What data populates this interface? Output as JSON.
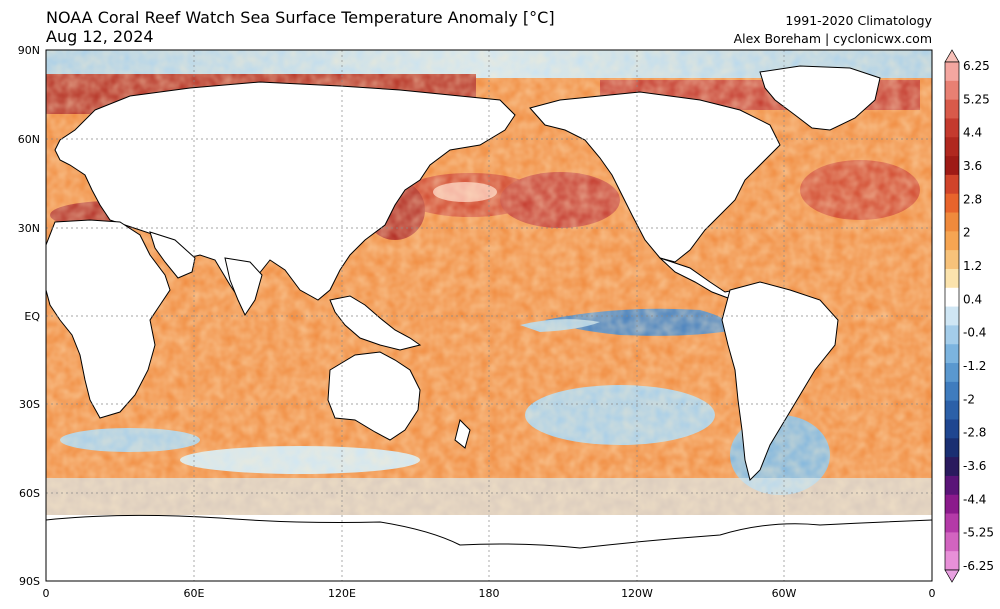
{
  "header": {
    "title": "NOAA Coral Reef Watch Sea Surface Temperature Anomaly [°C]",
    "date": "Aug 12, 2024",
    "climatology": "1991-2020 Climatology",
    "credit": "Alex Boreham | cyclonicwx.com"
  },
  "map": {
    "lat_labels": [
      "90N",
      "60N",
      "30N",
      "EQ",
      "30S",
      "60S",
      "90S"
    ],
    "lon_labels": [
      "0",
      "60E",
      "120E",
      "180",
      "120W",
      "60W",
      "0"
    ]
  },
  "colorbar": {
    "labels": [
      "6.25",
      "5.25",
      "4.4",
      "3.6",
      "2.8",
      "2",
      "1.2",
      "0.4",
      "-0.4",
      "-1.2",
      "-2",
      "-2.8",
      "-3.6",
      "-4.4",
      "-5.25",
      "-6.25"
    ],
    "colors": [
      "#f4a6a0",
      "#e88073",
      "#d85a4a",
      "#c43a2e",
      "#b0281f",
      "#9e1b16",
      "#d0442a",
      "#e8642c",
      "#f08a3c",
      "#f6a552",
      "#f7c27a",
      "#fbe3ad",
      "#ffffff",
      "#cfe6f4",
      "#a4cdea",
      "#7cb4df",
      "#5a98cf",
      "#3f7cbe",
      "#2c60a8",
      "#1f4690",
      "#1a2f72",
      "#2a1a5e",
      "#5a1478",
      "#8b1a8c",
      "#b43aa8",
      "#d264c0",
      "#e890d8"
    ],
    "top_color": "#f8c0b8",
    "bottom_color": "#e8a0e0"
  }
}
